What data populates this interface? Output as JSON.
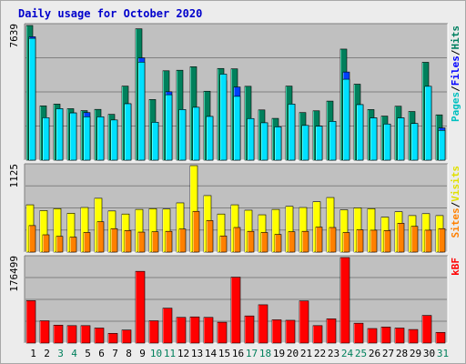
{
  "title": "Daily usage for October 2020",
  "panels": {
    "top": {
      "max_label": "7639",
      "legend": [
        "Pages",
        "/",
        "Files",
        "/",
        "Hits"
      ]
    },
    "mid": {
      "max_label": "1125",
      "legend": [
        "Sites",
        "/",
        "Visits"
      ]
    },
    "bot": {
      "max_label": "176499",
      "legend": [
        "kB",
        "F"
      ]
    }
  },
  "colors": {
    "hits": "#00805c",
    "files": "#0040ff",
    "pages": "#00e0ff",
    "visits": "#ffff00",
    "sites": "#ff8000",
    "kbytes": "#ff0000",
    "panel_bg": "#c0c0c0",
    "label_blue": "#0000cc",
    "legend_pages": "#00c0c0",
    "legend_files": "#0000ff",
    "legend_hits": "#008060",
    "legend_sites": "#ff8000",
    "legend_visits": "#e0e000",
    "legend_kb": "#ff0000",
    "weekend_day": "#00805c"
  },
  "chart_data": {
    "type": "bar",
    "title": "Daily usage for October 2020",
    "categories": [
      "1",
      "2",
      "3",
      "4",
      "5",
      "6",
      "7",
      "8",
      "9",
      "10",
      "11",
      "12",
      "13",
      "14",
      "15",
      "16",
      "17",
      "18",
      "19",
      "20",
      "21",
      "22",
      "23",
      "24",
      "25",
      "26",
      "27",
      "28",
      "29",
      "30",
      "31"
    ],
    "weekend_days": [
      "3",
      "4",
      "10",
      "11",
      "17",
      "18",
      "24",
      "25",
      "31"
    ],
    "panels": [
      {
        "ylim": [
          0,
          7639
        ],
        "series": [
          {
            "name": "Hits",
            "values": [
              7639,
              3080,
              3180,
              2920,
              2810,
              2880,
              2600,
              4200,
              7450,
              3440,
              5070,
              5100,
              5300,
              3910,
              5200,
              5180,
              4190,
              2850,
              2370,
              4200,
              2700,
              2800,
              3350,
              6300,
              4310,
              2870,
              2500,
              3060,
              2760,
              5550,
              2570
            ]
          },
          {
            "name": "Files",
            "values": [
              7000,
              2410,
              2920,
              2680,
              2700,
              2460,
              2280,
              3200,
              5800,
              2150,
              3880,
              2870,
              3000,
              2480,
              4500,
              4150,
              2360,
              2120,
              1890,
              3180,
              1970,
              1930,
              2200,
              5000,
              3150,
              2400,
              2050,
              2400,
              2080,
              4190,
              1830
            ]
          },
          {
            "name": "Pages",
            "values": [
              6910,
              2410,
              2920,
              2680,
              2460,
              2460,
              2280,
              3200,
              5560,
              2150,
              3710,
              2870,
              3000,
              2480,
              4880,
              3620,
              2360,
              2120,
              1890,
              3180,
              1970,
              1930,
              2200,
              4590,
              3150,
              2400,
              2050,
              2400,
              2080,
              4190,
              1690
            ]
          }
        ]
      },
      {
        "ylim": [
          0,
          1125
        ],
        "series": [
          {
            "name": "Visits",
            "values": [
              615,
              540,
              565,
              505,
              580,
              700,
              535,
              495,
              555,
              565,
              560,
              640,
              1125,
              735,
              495,
              615,
              545,
              485,
              555,
              595,
              580,
              655,
              710,
              550,
              575,
              565,
              455,
              525,
              475,
              500,
              475
            ]
          },
          {
            "name": "Sites",
            "values": [
              345,
              225,
              205,
              195,
              255,
              395,
              305,
              280,
              260,
              265,
              270,
              300,
              530,
              410,
              210,
              320,
              270,
              255,
              230,
              265,
              270,
              325,
              320,
              255,
              290,
              285,
              280,
              375,
              335,
              285,
              305
            ]
          }
        ]
      },
      {
        "ylim": [
          0,
          176499
        ],
        "series": [
          {
            "name": "kB F",
            "values": [
              87500,
              46000,
              37000,
              36000,
              36000,
              31000,
              20000,
              27000,
              148000,
              46000,
              72000,
              53000,
              54000,
              53000,
              43000,
              136000,
              56000,
              79000,
              48000,
              47000,
              87000,
              36000,
              50000,
              176499,
              41000,
              30000,
              33000,
              31000,
              28000,
              57000,
              22000
            ]
          }
        ]
      }
    ]
  }
}
